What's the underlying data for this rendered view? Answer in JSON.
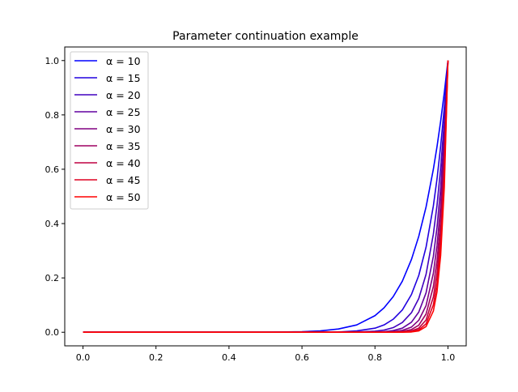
{
  "chart_data": {
    "type": "line",
    "title": "Parameter continuation example",
    "xlabel": "",
    "ylabel": "",
    "xlim": [
      -0.05,
      1.05
    ],
    "ylim": [
      -0.05,
      1.05
    ],
    "xticks": [
      0.0,
      0.2,
      0.4,
      0.6,
      0.8,
      1.0
    ],
    "xtick_labels": [
      "0.0",
      "0.2",
      "0.4",
      "0.6",
      "0.8",
      "1.0"
    ],
    "yticks": [
      0.0,
      0.2,
      0.4,
      0.6,
      0.8,
      1.0
    ],
    "ytick_labels": [
      "0.0",
      "0.2",
      "0.4",
      "0.6",
      "0.8",
      "1.0"
    ],
    "grid": false,
    "legend_position": "upper-left",
    "x": [
      0,
      0.1,
      0.2,
      0.3,
      0.4,
      0.5,
      0.6,
      0.65,
      0.7,
      0.75,
      0.8,
      0.825,
      0.85,
      0.875,
      0.9,
      0.92,
      0.94,
      0.96,
      0.97,
      0.98,
      0.99,
      1.0
    ],
    "series": [
      {
        "name": "α = 10",
        "color": "#0000ff",
        "values": [
          0,
          0,
          0,
          0,
          0,
          0,
          0.002,
          0.005,
          0.012,
          0.027,
          0.061,
          0.09,
          0.131,
          0.188,
          0.268,
          0.353,
          0.461,
          0.6,
          0.683,
          0.777,
          0.882,
          1
        ]
      },
      {
        "name": "α = 15",
        "color": "#2000df",
        "values": [
          0,
          0,
          0,
          0,
          0,
          0,
          0,
          0,
          0.001,
          0.005,
          0.015,
          0.027,
          0.048,
          0.082,
          0.139,
          0.209,
          0.313,
          0.465,
          0.564,
          0.685,
          0.828,
          1
        ]
      },
      {
        "name": "α = 20",
        "color": "#4000bf",
        "values": [
          0,
          0,
          0,
          0,
          0,
          0,
          0,
          0,
          0,
          0.001,
          0.004,
          0.008,
          0.017,
          0.036,
          0.072,
          0.124,
          0.213,
          0.361,
          0.467,
          0.604,
          0.778,
          1
        ]
      },
      {
        "name": "α = 25",
        "color": "#60009f",
        "values": [
          0,
          0,
          0,
          0,
          0,
          0,
          0,
          0,
          0,
          0,
          0.001,
          0.002,
          0.006,
          0.015,
          0.037,
          0.074,
          0.145,
          0.279,
          0.386,
          0.532,
          0.731,
          1
        ]
      },
      {
        "name": "α = 30",
        "color": "#800080",
        "values": [
          0,
          0,
          0,
          0,
          0,
          0,
          0,
          0,
          0,
          0,
          0,
          0.001,
          0.002,
          0.007,
          0.019,
          0.044,
          0.098,
          0.217,
          0.319,
          0.469,
          0.686,
          1
        ]
      },
      {
        "name": "α = 35",
        "color": "#9f0060",
        "values": [
          0,
          0,
          0,
          0,
          0,
          0,
          0,
          0,
          0,
          0,
          0,
          0,
          0.001,
          0.003,
          0.01,
          0.026,
          0.067,
          0.168,
          0.263,
          0.413,
          0.644,
          1
        ]
      },
      {
        "name": "α = 40",
        "color": "#bf0040",
        "values": [
          0,
          0,
          0,
          0,
          0,
          0,
          0,
          0,
          0,
          0,
          0,
          0,
          0,
          0.001,
          0.005,
          0.015,
          0.045,
          0.13,
          0.218,
          0.364,
          0.605,
          1
        ]
      },
      {
        "name": "α = 45",
        "color": "#df0020",
        "values": [
          0,
          0,
          0,
          0,
          0,
          0,
          0,
          0,
          0,
          0,
          0,
          0,
          0,
          0.001,
          0.003,
          0.009,
          0.031,
          0.101,
          0.18,
          0.321,
          0.568,
          1
        ]
      },
      {
        "name": "α = 50",
        "color": "#ff0000",
        "values": [
          0,
          0,
          0,
          0,
          0,
          0,
          0,
          0,
          0,
          0,
          0,
          0,
          0,
          0,
          0.001,
          0.005,
          0.021,
          0.078,
          0.149,
          0.283,
          0.534,
          1
        ]
      }
    ]
  }
}
